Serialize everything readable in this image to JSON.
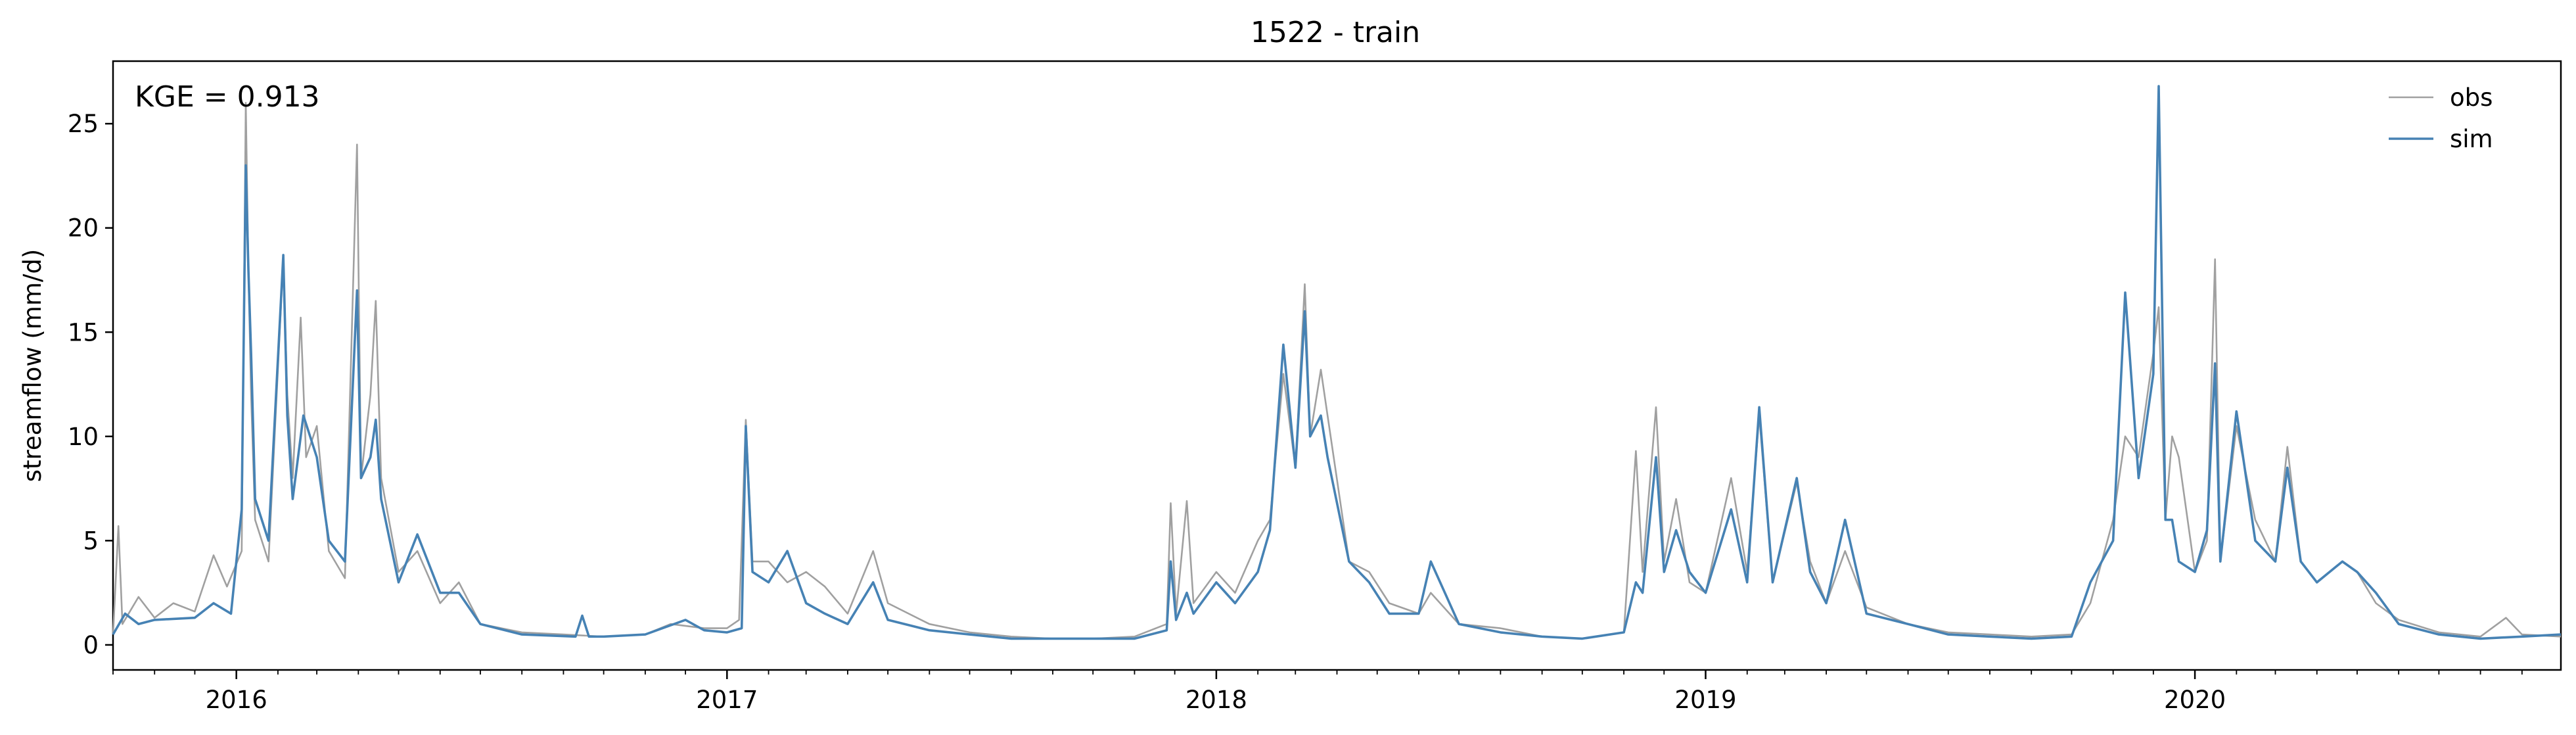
{
  "chart_data": {
    "type": "line",
    "title": "1522 - train",
    "xlabel": "",
    "ylabel": "streamflow (mm/d)",
    "annotation": "KGE = 0.913",
    "x_range": [
      "2015-10-01",
      "2020-09-30"
    ],
    "xlim": [
      "2015-10-01",
      "2020-09-30"
    ],
    "ylim": [
      -1.2,
      28
    ],
    "yticks": [
      0,
      5,
      10,
      15,
      20,
      25
    ],
    "xticks": [
      {
        "date": "2016-01-01",
        "label": "2016"
      },
      {
        "date": "2017-01-01",
        "label": "2017"
      },
      {
        "date": "2018-01-01",
        "label": "2018"
      },
      {
        "date": "2019-01-01",
        "label": "2019"
      },
      {
        "date": "2020-01-01",
        "label": "2020"
      }
    ],
    "grid": false,
    "legend_position": "top-right",
    "series": [
      {
        "name": "obs",
        "color": "#a0a0a0",
        "points": [
          [
            "2015-10-01",
            0.5
          ],
          [
            "2015-10-05",
            5.7
          ],
          [
            "2015-10-08",
            1.0
          ],
          [
            "2015-10-20",
            2.3
          ],
          [
            "2015-11-01",
            1.3
          ],
          [
            "2015-11-15",
            2.0
          ],
          [
            "2015-12-01",
            1.6
          ],
          [
            "2015-12-15",
            4.3
          ],
          [
            "2015-12-25",
            2.8
          ],
          [
            "2016-01-05",
            4.5
          ],
          [
            "2016-01-08",
            26.0
          ],
          [
            "2016-01-10",
            18.0
          ],
          [
            "2016-01-12",
            12.0
          ],
          [
            "2016-01-15",
            6.0
          ],
          [
            "2016-01-25",
            4.0
          ],
          [
            "2016-02-05",
            18.5
          ],
          [
            "2016-02-08",
            12.0
          ],
          [
            "2016-02-12",
            8.0
          ],
          [
            "2016-02-18",
            15.7
          ],
          [
            "2016-02-22",
            9.0
          ],
          [
            "2016-03-01",
            10.5
          ],
          [
            "2016-03-10",
            4.5
          ],
          [
            "2016-03-22",
            3.2
          ],
          [
            "2016-03-31",
            24.0
          ],
          [
            "2016-04-03",
            8.0
          ],
          [
            "2016-04-10",
            12.0
          ],
          [
            "2016-04-14",
            16.5
          ],
          [
            "2016-04-18",
            8.0
          ],
          [
            "2016-05-01",
            3.5
          ],
          [
            "2016-05-15",
            4.5
          ],
          [
            "2016-06-01",
            2.0
          ],
          [
            "2016-06-15",
            3.0
          ],
          [
            "2016-07-01",
            1.0
          ],
          [
            "2016-08-01",
            0.6
          ],
          [
            "2016-09-01",
            0.5
          ],
          [
            "2016-10-01",
            0.4
          ],
          [
            "2016-11-01",
            0.5
          ],
          [
            "2016-11-20",
            1.0
          ],
          [
            "2016-12-15",
            0.8
          ],
          [
            "2017-01-01",
            0.8
          ],
          [
            "2017-01-10",
            1.2
          ],
          [
            "2017-01-15",
            10.8
          ],
          [
            "2017-01-20",
            4.0
          ],
          [
            "2017-02-01",
            4.0
          ],
          [
            "2017-02-15",
            3.0
          ],
          [
            "2017-03-01",
            3.5
          ],
          [
            "2017-03-15",
            2.8
          ],
          [
            "2017-04-01",
            1.5
          ],
          [
            "2017-04-20",
            4.5
          ],
          [
            "2017-05-01",
            2.0
          ],
          [
            "2017-06-01",
            1.0
          ],
          [
            "2017-07-01",
            0.6
          ],
          [
            "2017-08-01",
            0.4
          ],
          [
            "2017-09-01",
            0.3
          ],
          [
            "2017-10-01",
            0.3
          ],
          [
            "2017-11-01",
            0.4
          ],
          [
            "2017-11-25",
            1.0
          ],
          [
            "2017-11-28",
            6.8
          ],
          [
            "2017-12-02",
            1.5
          ],
          [
            "2017-12-10",
            6.9
          ],
          [
            "2017-12-15",
            2.0
          ],
          [
            "2018-01-01",
            3.5
          ],
          [
            "2018-01-15",
            2.5
          ],
          [
            "2018-02-01",
            5.0
          ],
          [
            "2018-02-10",
            6.0
          ],
          [
            "2018-02-20",
            13.0
          ],
          [
            "2018-03-01",
            8.5
          ],
          [
            "2018-03-08",
            17.3
          ],
          [
            "2018-03-12",
            10.0
          ],
          [
            "2018-03-20",
            13.2
          ],
          [
            "2018-03-25",
            11.0
          ],
          [
            "2018-04-10",
            4.0
          ],
          [
            "2018-04-25",
            3.5
          ],
          [
            "2018-05-10",
            2.0
          ],
          [
            "2018-06-01",
            1.5
          ],
          [
            "2018-06-10",
            2.5
          ],
          [
            "2018-07-01",
            1.0
          ],
          [
            "2018-08-01",
            0.8
          ],
          [
            "2018-09-01",
            0.4
          ],
          [
            "2018-10-01",
            0.3
          ],
          [
            "2018-11-01",
            0.6
          ],
          [
            "2018-11-10",
            9.3
          ],
          [
            "2018-11-15",
            3.5
          ],
          [
            "2018-11-25",
            11.4
          ],
          [
            "2018-12-01",
            4.0
          ],
          [
            "2018-12-10",
            7.0
          ],
          [
            "2018-12-20",
            3.0
          ],
          [
            "2019-01-01",
            2.5
          ],
          [
            "2019-01-20",
            8.0
          ],
          [
            "2019-02-01",
            3.5
          ],
          [
            "2019-02-10",
            11.0
          ],
          [
            "2019-02-20",
            3.0
          ],
          [
            "2019-03-10",
            7.8
          ],
          [
            "2019-03-20",
            4.0
          ],
          [
            "2019-04-01",
            2.0
          ],
          [
            "2019-04-15",
            4.5
          ],
          [
            "2019-05-01",
            1.8
          ],
          [
            "2019-06-01",
            1.0
          ],
          [
            "2019-07-01",
            0.6
          ],
          [
            "2019-08-01",
            0.5
          ],
          [
            "2019-09-01",
            0.4
          ],
          [
            "2019-10-01",
            0.5
          ],
          [
            "2019-10-15",
            2.0
          ],
          [
            "2019-11-01",
            6.0
          ],
          [
            "2019-11-10",
            10.0
          ],
          [
            "2019-11-20",
            9.0
          ],
          [
            "2019-12-01",
            14.0
          ],
          [
            "2019-12-05",
            16.2
          ],
          [
            "2019-12-10",
            6.0
          ],
          [
            "2019-12-15",
            10.0
          ],
          [
            "2019-12-20",
            9.0
          ],
          [
            "2020-01-01",
            3.5
          ],
          [
            "2020-01-10",
            5.0
          ],
          [
            "2020-01-16",
            18.5
          ],
          [
            "2020-01-20",
            4.0
          ],
          [
            "2020-02-01",
            10.5
          ],
          [
            "2020-02-15",
            6.0
          ],
          [
            "2020-03-01",
            4.0
          ],
          [
            "2020-03-10",
            9.5
          ],
          [
            "2020-03-20",
            4.0
          ],
          [
            "2020-04-01",
            3.0
          ],
          [
            "2020-04-20",
            4.0
          ],
          [
            "2020-05-01",
            3.5
          ],
          [
            "2020-05-15",
            2.0
          ],
          [
            "2020-06-01",
            1.2
          ],
          [
            "2020-07-01",
            0.6
          ],
          [
            "2020-08-01",
            0.4
          ],
          [
            "2020-08-20",
            1.3
          ],
          [
            "2020-09-01",
            0.5
          ],
          [
            "2020-09-30",
            0.4
          ]
        ]
      },
      {
        "name": "sim",
        "color": "#4682b4",
        "points": [
          [
            "2015-10-01",
            0.5
          ],
          [
            "2015-10-10",
            1.5
          ],
          [
            "2015-10-20",
            1.0
          ],
          [
            "2015-11-01",
            1.2
          ],
          [
            "2015-12-01",
            1.3
          ],
          [
            "2015-12-15",
            2.0
          ],
          [
            "2015-12-28",
            1.5
          ],
          [
            "2016-01-05",
            6.5
          ],
          [
            "2016-01-08",
            23.0
          ],
          [
            "2016-01-10",
            18.0
          ],
          [
            "2016-01-12",
            14.0
          ],
          [
            "2016-01-15",
            7.0
          ],
          [
            "2016-01-25",
            5.0
          ],
          [
            "2016-02-05",
            18.7
          ],
          [
            "2016-02-08",
            11.0
          ],
          [
            "2016-02-12",
            7.0
          ],
          [
            "2016-02-20",
            11.0
          ],
          [
            "2016-03-01",
            9.0
          ],
          [
            "2016-03-10",
            5.0
          ],
          [
            "2016-03-22",
            4.0
          ],
          [
            "2016-03-31",
            17.0
          ],
          [
            "2016-04-03",
            8.0
          ],
          [
            "2016-04-10",
            9.0
          ],
          [
            "2016-04-14",
            10.8
          ],
          [
            "2016-04-18",
            7.0
          ],
          [
            "2016-05-01",
            3.0
          ],
          [
            "2016-05-15",
            5.3
          ],
          [
            "2016-06-01",
            2.5
          ],
          [
            "2016-06-15",
            2.5
          ],
          [
            "2016-07-01",
            1.0
          ],
          [
            "2016-08-01",
            0.5
          ],
          [
            "2016-09-10",
            0.4
          ],
          [
            "2016-09-15",
            1.4
          ],
          [
            "2016-09-20",
            0.4
          ],
          [
            "2016-10-01",
            0.4
          ],
          [
            "2016-11-01",
            0.5
          ],
          [
            "2016-12-01",
            1.2
          ],
          [
            "2016-12-15",
            0.7
          ],
          [
            "2017-01-01",
            0.6
          ],
          [
            "2017-01-12",
            0.8
          ],
          [
            "2017-01-15",
            10.5
          ],
          [
            "2017-01-20",
            3.5
          ],
          [
            "2017-02-01",
            3.0
          ],
          [
            "2017-02-15",
            4.5
          ],
          [
            "2017-03-01",
            2.0
          ],
          [
            "2017-03-15",
            1.5
          ],
          [
            "2017-04-01",
            1.0
          ],
          [
            "2017-04-20",
            3.0
          ],
          [
            "2017-05-01",
            1.2
          ],
          [
            "2017-06-01",
            0.7
          ],
          [
            "2017-07-01",
            0.5
          ],
          [
            "2017-08-01",
            0.3
          ],
          [
            "2017-09-01",
            0.3
          ],
          [
            "2017-10-01",
            0.3
          ],
          [
            "2017-11-01",
            0.3
          ],
          [
            "2017-11-25",
            0.7
          ],
          [
            "2017-11-28",
            4.0
          ],
          [
            "2017-12-02",
            1.2
          ],
          [
            "2017-12-10",
            2.5
          ],
          [
            "2017-12-15",
            1.5
          ],
          [
            "2018-01-01",
            3.0
          ],
          [
            "2018-01-15",
            2.0
          ],
          [
            "2018-02-01",
            3.5
          ],
          [
            "2018-02-10",
            5.5
          ],
          [
            "2018-02-20",
            14.4
          ],
          [
            "2018-03-01",
            8.5
          ],
          [
            "2018-03-08",
            16.0
          ],
          [
            "2018-03-12",
            10.0
          ],
          [
            "2018-03-20",
            11.0
          ],
          [
            "2018-03-25",
            9.0
          ],
          [
            "2018-04-10",
            4.0
          ],
          [
            "2018-04-25",
            3.0
          ],
          [
            "2018-05-10",
            1.5
          ],
          [
            "2018-06-01",
            1.5
          ],
          [
            "2018-06-10",
            4.0
          ],
          [
            "2018-07-01",
            1.0
          ],
          [
            "2018-08-01",
            0.6
          ],
          [
            "2018-09-01",
            0.4
          ],
          [
            "2018-10-01",
            0.3
          ],
          [
            "2018-11-01",
            0.6
          ],
          [
            "2018-11-10",
            3.0
          ],
          [
            "2018-11-15",
            2.5
          ],
          [
            "2018-11-25",
            9.0
          ],
          [
            "2018-12-01",
            3.5
          ],
          [
            "2018-12-10",
            5.5
          ],
          [
            "2018-12-20",
            3.5
          ],
          [
            "2019-01-01",
            2.5
          ],
          [
            "2019-01-20",
            6.5
          ],
          [
            "2019-02-01",
            3.0
          ],
          [
            "2019-02-10",
            11.4
          ],
          [
            "2019-02-20",
            3.0
          ],
          [
            "2019-03-10",
            8.0
          ],
          [
            "2019-03-20",
            3.5
          ],
          [
            "2019-04-01",
            2.0
          ],
          [
            "2019-04-15",
            6.0
          ],
          [
            "2019-05-01",
            1.5
          ],
          [
            "2019-06-01",
            1.0
          ],
          [
            "2019-07-01",
            0.5
          ],
          [
            "2019-08-01",
            0.4
          ],
          [
            "2019-09-01",
            0.3
          ],
          [
            "2019-10-01",
            0.4
          ],
          [
            "2019-10-15",
            3.0
          ],
          [
            "2019-11-01",
            5.0
          ],
          [
            "2019-11-10",
            16.9
          ],
          [
            "2019-11-20",
            8.0
          ],
          [
            "2019-12-01",
            13.0
          ],
          [
            "2019-12-05",
            26.8
          ],
          [
            "2019-12-10",
            6.0
          ],
          [
            "2019-12-15",
            6.0
          ],
          [
            "2019-12-20",
            4.0
          ],
          [
            "2020-01-01",
            3.5
          ],
          [
            "2020-01-10",
            5.5
          ],
          [
            "2020-01-16",
            13.5
          ],
          [
            "2020-01-20",
            4.0
          ],
          [
            "2020-02-01",
            11.2
          ],
          [
            "2020-02-15",
            5.0
          ],
          [
            "2020-03-01",
            4.0
          ],
          [
            "2020-03-10",
            8.5
          ],
          [
            "2020-03-20",
            4.0
          ],
          [
            "2020-04-01",
            3.0
          ],
          [
            "2020-04-20",
            4.0
          ],
          [
            "2020-05-01",
            3.5
          ],
          [
            "2020-05-15",
            2.5
          ],
          [
            "2020-06-01",
            1.0
          ],
          [
            "2020-07-01",
            0.5
          ],
          [
            "2020-08-01",
            0.3
          ],
          [
            "2020-09-01",
            0.4
          ],
          [
            "2020-09-30",
            0.5
          ]
        ]
      }
    ]
  }
}
